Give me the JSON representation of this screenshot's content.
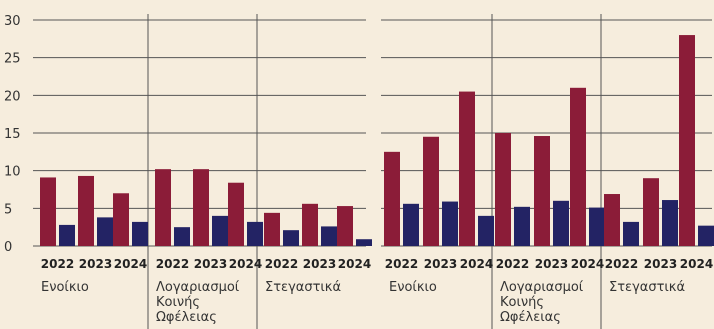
{
  "colors": {
    "primary": "#8b1c38",
    "secondary": "#232364",
    "grid": "#555555",
    "background": "#f6eddd"
  },
  "chart_data": [
    {
      "type": "bar",
      "panel": "left",
      "ylim": [
        0,
        30
      ],
      "yticks": [
        "0",
        "5",
        "10",
        "15",
        "20",
        "25",
        "30"
      ],
      "grid": true,
      "groups": [
        {
          "label": [
            "Ενοίκιο"
          ],
          "years": [
            "2022",
            "2023",
            "2024"
          ],
          "values": [
            [
              9.1,
              2.8
            ],
            [
              9.3,
              3.8
            ],
            [
              7.0,
              3.2
            ]
          ]
        },
        {
          "label": [
            "Λογαριασμοί",
            "Κοινής",
            "Ωφέλειας"
          ],
          "years": [
            "2022",
            "2023",
            "2024"
          ],
          "values": [
            [
              10.2,
              2.5
            ],
            [
              10.2,
              4.0
            ],
            [
              8.4,
              3.2
            ]
          ]
        },
        {
          "label": [
            "Στεγαστικά"
          ],
          "years": [
            "2022",
            "2023",
            "2024"
          ],
          "values": [
            [
              4.4,
              2.1
            ],
            [
              5.6,
              2.6
            ],
            [
              5.3,
              0.9
            ]
          ]
        }
      ]
    },
    {
      "type": "bar",
      "panel": "right",
      "ylim": [
        0,
        30
      ],
      "grid": true,
      "groups": [
        {
          "label": [
            "Ενοίκιο"
          ],
          "years": [
            "2022",
            "2023",
            "2024"
          ],
          "values": [
            [
              12.5,
              5.6
            ],
            [
              14.5,
              5.9
            ],
            [
              20.5,
              4.0
            ]
          ]
        },
        {
          "label": [
            "Λογαριασμοί",
            "Κοινής",
            "Ωφέλειας"
          ],
          "years": [
            "2022",
            "2023",
            "2024"
          ],
          "values": [
            [
              15.0,
              5.2
            ],
            [
              14.6,
              6.0
            ],
            [
              21.0,
              5.1
            ]
          ]
        },
        {
          "label": [
            "Στεγαστικά"
          ],
          "years": [
            "2022",
            "2023",
            "2024"
          ],
          "values": [
            [
              6.9,
              3.2
            ],
            [
              9.0,
              6.1
            ],
            [
              28.0,
              2.7
            ]
          ]
        }
      ]
    }
  ]
}
